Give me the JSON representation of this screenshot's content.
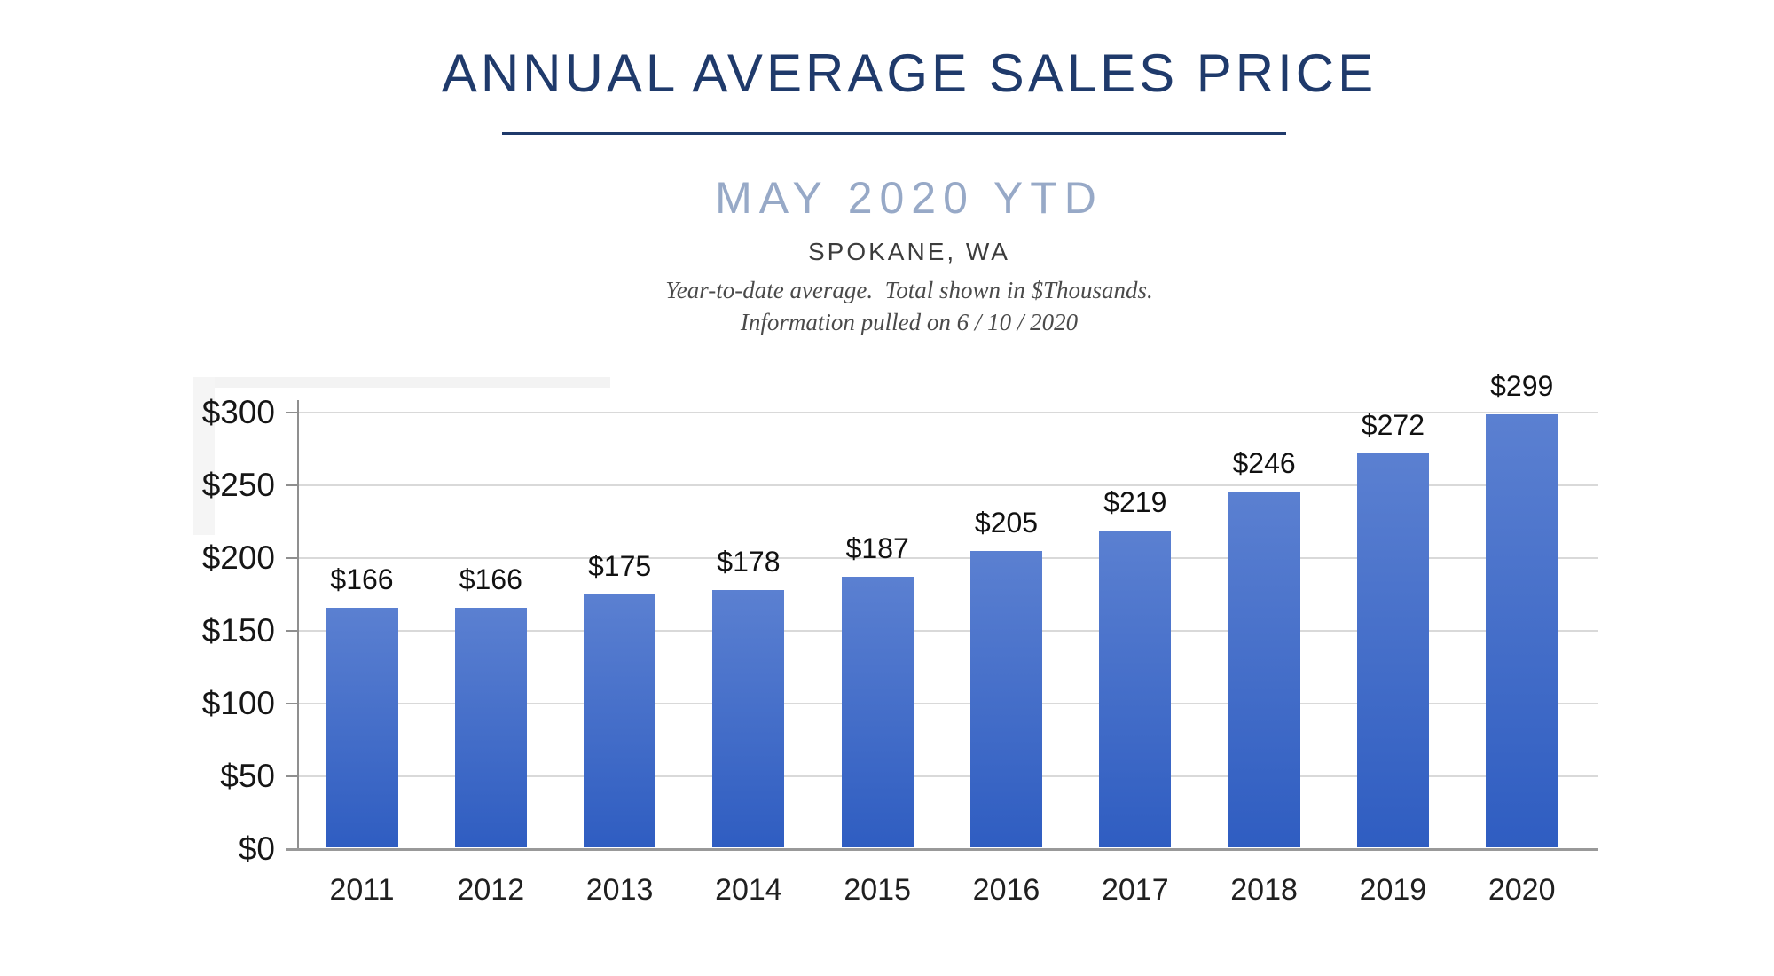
{
  "header": {
    "title": "ANNUAL AVERAGE SALES PRICE",
    "subtitle": "MAY 2020 YTD",
    "location": "SPOKANE, WA",
    "note_line1": "Year-to-date average.  Total shown in $Thousands.",
    "note_line2": "Information pulled on 6 / 10 / 2020"
  },
  "colors": {
    "title_navy": "#1f3a6b",
    "subtitle_blue_gray": "#97a9c7",
    "bar_gradient_top": "#5b80d1",
    "bar_gradient_bottom": "#2f5dc1",
    "gridline": "#d9d9d9",
    "axis": "#8f8f8f",
    "label_text": "#161616"
  },
  "chart_data": {
    "type": "bar",
    "title": "Annual Average Sales Price",
    "subtitle": "May 2020 YTD, Spokane, WA",
    "units": "$Thousands",
    "categories": [
      "2011",
      "2012",
      "2013",
      "2014",
      "2015",
      "2016",
      "2017",
      "2018",
      "2019",
      "2020"
    ],
    "values": [
      166,
      166,
      175,
      178,
      187,
      205,
      219,
      246,
      272,
      299
    ],
    "value_labels": [
      "$166",
      "$166",
      "$175",
      "$178",
      "$187",
      "$205",
      "$219",
      "$246",
      "$272",
      "$299"
    ],
    "y_ticks": [
      "$0",
      "$50",
      "$100",
      "$150",
      "$200",
      "$250",
      "$300"
    ],
    "ylim": [
      0,
      300
    ],
    "y_tick_step": 50,
    "xlabel": "",
    "ylabel": "",
    "grid": true,
    "legend": false
  }
}
